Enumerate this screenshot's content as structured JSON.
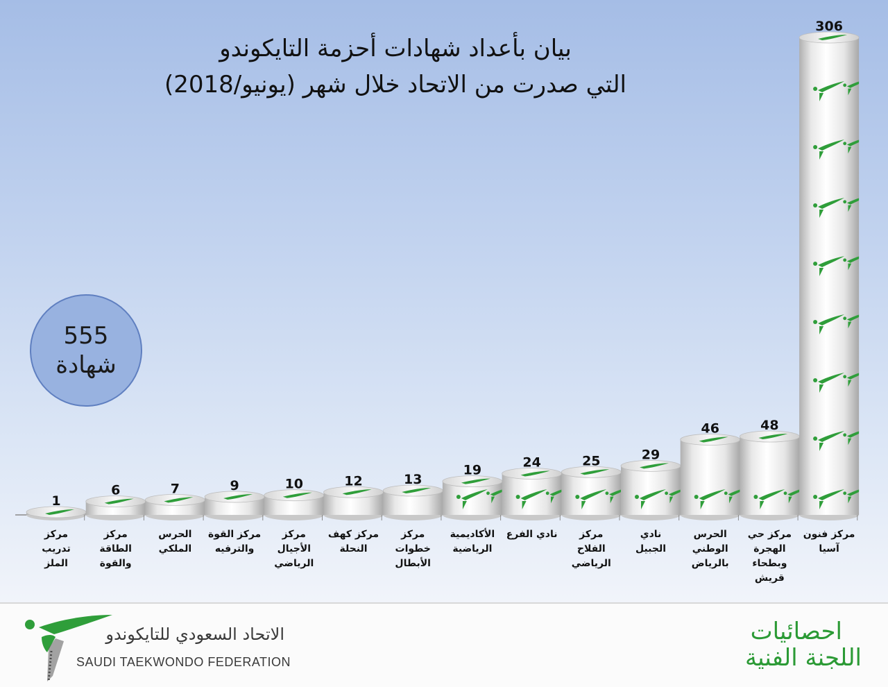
{
  "title": {
    "line1": "بيان بأعداد شهادات أحزمة التايكوندو",
    "line2": "التي صدرت من الاتحاد خلال شهر (يونيو/2018)"
  },
  "total": {
    "value": "555",
    "unit": "شهادة",
    "badge_color": "#98b2e0"
  },
  "chart_data": {
    "type": "bar",
    "categories": [
      "مركز تدريب الملز",
      "مركز الطاقة والقوة",
      "الحرس الملكي",
      "مركز القوة والترفيه",
      "مركز الأجيال الرياضي",
      "مركز كهف النحلة",
      "مركز خطوات الأبطال",
      "الأكاديمية الرياضية",
      "نادي الفرع",
      "مركز الفلاح الرياضي",
      "نادي الجبيل",
      "الحرس الوطني بالرياض",
      "مركز حي الهجرة وبطحاء قريش",
      "مركز فنون آسيا"
    ],
    "category_lines": [
      [
        "مركز",
        "تدريب",
        "الملز"
      ],
      [
        "مركز",
        "الطاقة",
        "والقوة"
      ],
      [
        "الحرس",
        "الملكي"
      ],
      [
        "مركز القوة",
        "والترفيه"
      ],
      [
        "مركز",
        "الأجيال",
        "الرياضي"
      ],
      [
        "مركز كهف",
        "النحلة"
      ],
      [
        "مركز",
        "خطوات",
        "الأبطال"
      ],
      [
        "الأكاديمية",
        "الرياضية"
      ],
      [
        "نادي الفرع"
      ],
      [
        "مركز",
        "الفلاح",
        "الرياضي"
      ],
      [
        "نادي",
        "الجبيل"
      ],
      [
        "الحرس",
        "الوطني",
        "بالرياض"
      ],
      [
        "مركز حي",
        "الهجرة",
        "وبطحاء",
        "قريش"
      ],
      [
        "مركز فنون",
        "آسيا"
      ]
    ],
    "values": [
      1,
      6,
      7,
      9,
      10,
      12,
      13,
      19,
      24,
      25,
      29,
      46,
      48,
      306
    ],
    "ylim": [
      0,
      306
    ],
    "grid": false,
    "legend": "none",
    "bar_style": "white cylinders with green taekwondo logo pattern",
    "colors": {
      "bar_fill": "#f4f4f4",
      "bar_shade": "#b5b5b5",
      "logo_green": "#2f9e3a",
      "axis": "#8a8a8a"
    }
  },
  "footer": {
    "federation_ar": "الاتحاد السعودي للتايكوندو",
    "federation_en": "SAUDI TAEKWONDO FEDERATION",
    "stats_line1": "احصائيات",
    "stats_line2": "اللجنة الفنية",
    "text_color": "#2b9a35"
  }
}
